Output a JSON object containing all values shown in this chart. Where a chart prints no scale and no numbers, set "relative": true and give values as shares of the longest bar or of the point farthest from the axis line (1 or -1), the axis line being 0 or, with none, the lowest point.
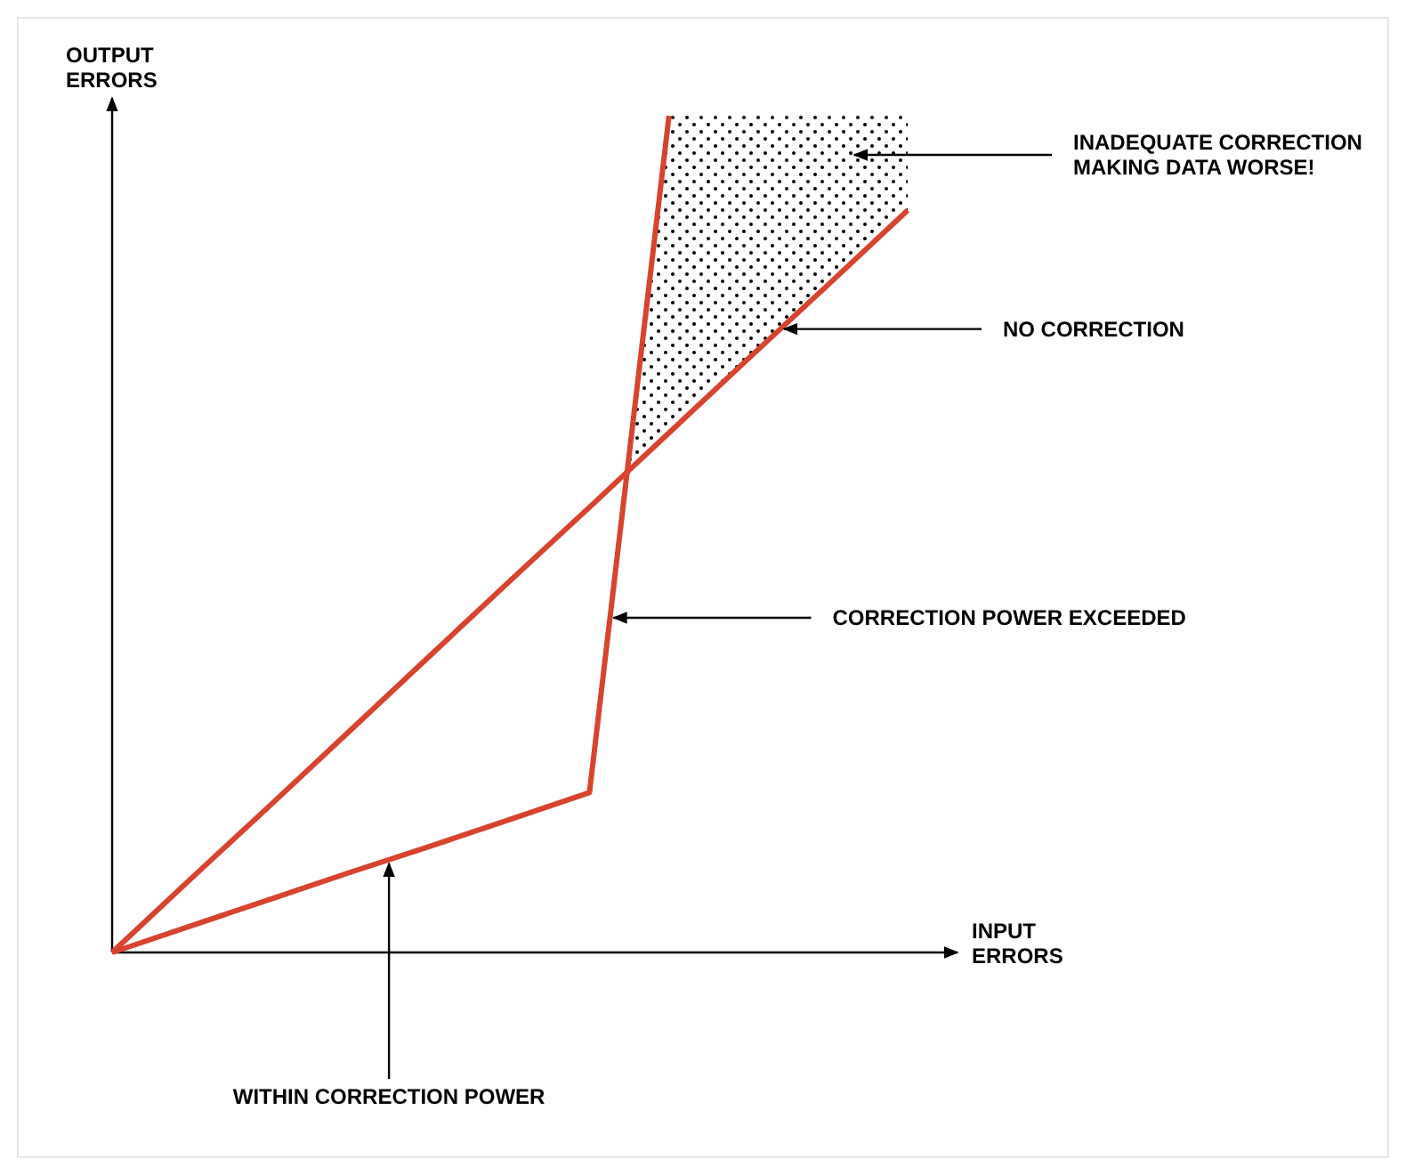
{
  "chart_data": {
    "type": "line",
    "relative": true,
    "xlabel": "INPUT ERRORS",
    "ylabel": "OUTPUT ERRORS",
    "categories": [
      null,
      null,
      null,
      null,
      null,
      null,
      null,
      null,
      null,
      null,
      null
    ],
    "series": [
      {
        "color": "#d8432e",
        "values": [
          0,
          0.089,
          0.177,
          0.266,
          0.355,
          0.444,
          0.532,
          0.621,
          0.71,
          0.798,
          0.887
        ]
      },
      {
        "color": "#d8432e",
        "values": [
          0,
          0.032,
          0.064,
          0.096,
          0.127,
          0.159,
          0.191,
          1,
          null,
          null,
          null
        ]
      }
    ],
    "annotations": [
      "INADEQUATE CORRECTION MAKING DATA WORSE!",
      "NO CORRECTION",
      "CORRECTION POWER EXCEEDED",
      "WITHIN CORRECTION POWER"
    ]
  }
}
